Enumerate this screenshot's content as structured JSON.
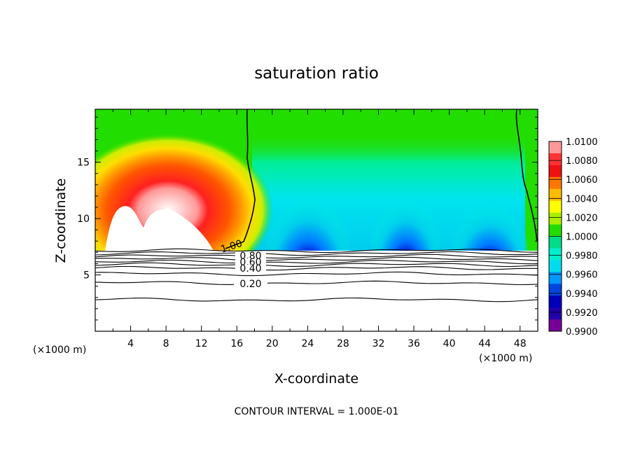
{
  "chart_data": {
    "type": "heatmap",
    "title": "saturation ratio",
    "xlabel": "X-coordinate",
    "ylabel": "Z-coordinate",
    "x_unit": "(×1000 m)",
    "y_unit": "(×1000 m)",
    "x_ticks": [
      4,
      8,
      12,
      16,
      20,
      24,
      28,
      32,
      36,
      40,
      44,
      48
    ],
    "x_tick_labels": [
      "4",
      "8",
      "12",
      "16",
      "20",
      "24",
      "28",
      "32",
      "36",
      "40",
      "44",
      "48"
    ],
    "y_ticks": [
      5,
      10,
      15
    ],
    "y_tick_labels": [
      "5",
      "10",
      "15"
    ],
    "xlim": [
      0,
      50
    ],
    "ylim": [
      0,
      19.7
    ],
    "colorbar": {
      "levels": [
        1.01,
        1.008,
        1.006,
        1.004,
        1.002,
        1.0,
        0.998,
        0.996,
        0.994,
        0.992,
        0.99
      ],
      "labels": [
        "1.0100",
        "1.0080",
        "1.0060",
        "1.0040",
        "1.0020",
        "1.0000",
        "0.9980",
        "0.9960",
        "0.9940",
        "0.9920",
        "0.9900"
      ],
      "colors": [
        "#ff9999",
        "#ff3333",
        "#ee1111",
        "#ff7700",
        "#ffbb00",
        "#ffff00",
        "#aaee00",
        "#22dd00",
        "#00dd88",
        "#00eecc",
        "#00ddee",
        "#0099ff",
        "#0044dd",
        "#0000bb",
        "#2200aa",
        "#770099"
      ]
    },
    "contour_labels": [
      "1.00",
      "0.80",
      "0.60",
      "0.40",
      "0.20"
    ],
    "contour_interval_text": "CONTOUR INTERVAL = 1.000E-01"
  }
}
